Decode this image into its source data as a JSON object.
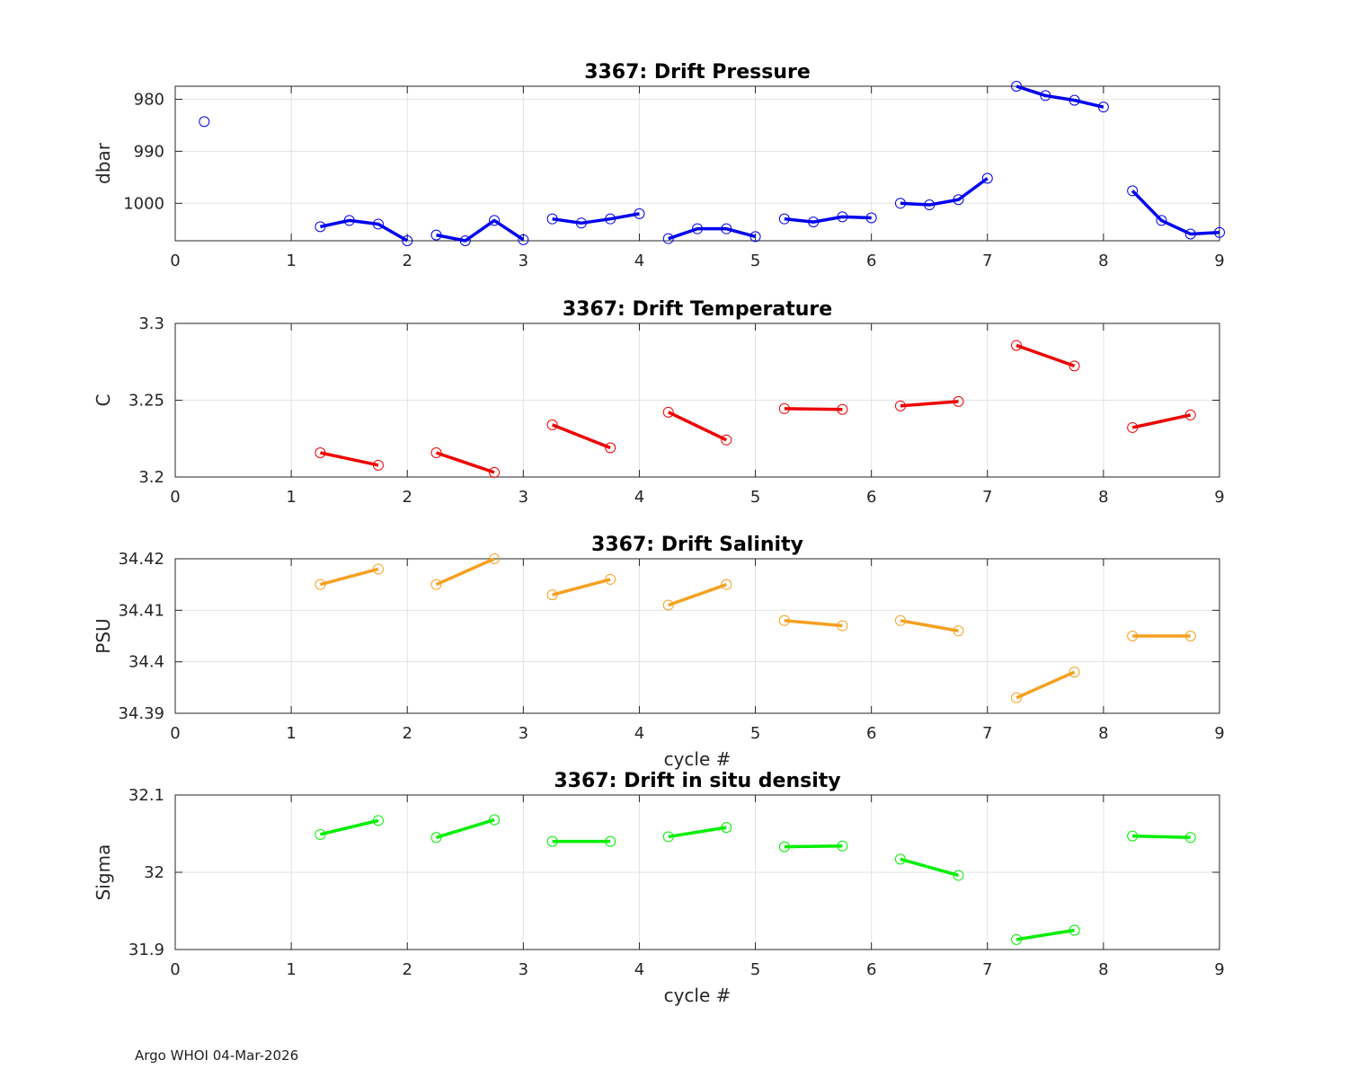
{
  "footer": "Argo WHOI 04-Mar-2026",
  "chart_data": [
    {
      "type": "line",
      "title": "3367: Drift Pressure",
      "xlabel": "",
      "ylabel": "dbar",
      "xlim": [
        0,
        9
      ],
      "ylim": [
        1007.2,
        977.5
      ],
      "y_reversed": true,
      "xticks": [
        "0",
        "1",
        "2",
        "3",
        "4",
        "5",
        "6",
        "7",
        "8",
        "9"
      ],
      "yticks": [
        {
          "v": 980,
          "label": "980"
        },
        {
          "v": 990,
          "label": "990"
        },
        {
          "v": 1000,
          "label": "1000"
        }
      ],
      "grid": true,
      "color": "#0000ee",
      "segments": [
        [
          [
            0.25,
            984.3
          ]
        ],
        [
          [
            1.25,
            1004.5
          ],
          [
            1.5,
            1003.3
          ],
          [
            1.75,
            1004.0
          ],
          [
            2.0,
            1007.2
          ]
        ],
        [
          [
            2.25,
            1006.1
          ],
          [
            2.5,
            1007.2
          ],
          [
            2.75,
            1003.3
          ],
          [
            3.0,
            1007.0
          ]
        ],
        [
          [
            3.25,
            1003.0
          ],
          [
            3.5,
            1003.8
          ],
          [
            3.75,
            1003.0
          ],
          [
            4.0,
            1002.0
          ]
        ],
        [
          [
            4.25,
            1006.8
          ],
          [
            4.5,
            1004.9
          ],
          [
            4.75,
            1004.9
          ],
          [
            5.0,
            1006.4
          ]
        ],
        [
          [
            5.25,
            1003.0
          ],
          [
            5.5,
            1003.6
          ],
          [
            5.75,
            1002.6
          ],
          [
            6.0,
            1002.8
          ]
        ],
        [
          [
            6.25,
            1000.0
          ],
          [
            6.5,
            1000.3
          ],
          [
            6.75,
            999.3
          ],
          [
            7.0,
            995.2
          ]
        ],
        [
          [
            7.25,
            977.5
          ],
          [
            7.5,
            979.3
          ],
          [
            7.75,
            980.2
          ],
          [
            8.0,
            981.5
          ]
        ],
        [
          [
            8.25,
            997.6
          ],
          [
            8.5,
            1003.3
          ],
          [
            8.75,
            1005.9
          ],
          [
            9.0,
            1005.6
          ]
        ]
      ]
    },
    {
      "type": "line",
      "title": "3367: Drift Temperature",
      "xlabel": "",
      "ylabel": "C",
      "xlim": [
        0,
        9
      ],
      "ylim": [
        3.2,
        3.3
      ],
      "y_reversed": false,
      "xticks": [
        "0",
        "1",
        "2",
        "3",
        "4",
        "5",
        "6",
        "7",
        "8",
        "9"
      ],
      "yticks": [
        {
          "v": 3.2,
          "label": "3.2"
        },
        {
          "v": 3.25,
          "label": "3.25"
        },
        {
          "v": 3.3,
          "label": "3.3"
        }
      ],
      "grid": true,
      "color": "#ee0000",
      "segments": [
        [
          [
            1.25,
            3.2158
          ],
          [
            1.75,
            3.2077
          ]
        ],
        [
          [
            2.25,
            3.2158
          ],
          [
            2.75,
            3.203
          ]
        ],
        [
          [
            3.25,
            3.234
          ],
          [
            3.75,
            3.219
          ]
        ],
        [
          [
            4.25,
            3.2422
          ],
          [
            4.75,
            3.2241
          ]
        ],
        [
          [
            5.25,
            3.2445
          ],
          [
            5.75,
            3.244
          ]
        ],
        [
          [
            6.25,
            3.2463
          ],
          [
            6.75,
            3.2492
          ]
        ],
        [
          [
            7.25,
            3.2857
          ],
          [
            7.75,
            3.2723
          ]
        ],
        [
          [
            8.25,
            3.2322
          ],
          [
            8.75,
            3.2404
          ]
        ]
      ]
    },
    {
      "type": "line",
      "title": "3367: Drift Salinity",
      "xlabel": "cycle #",
      "ylabel": "PSU",
      "xlim": [
        0,
        9
      ],
      "ylim": [
        34.39,
        34.42
      ],
      "y_reversed": false,
      "xticks": [
        "0",
        "1",
        "2",
        "3",
        "4",
        "5",
        "6",
        "7",
        "8",
        "9"
      ],
      "yticks": [
        {
          "v": 34.39,
          "label": "34.39"
        },
        {
          "v": 34.4,
          "label": "34.4"
        },
        {
          "v": 34.41,
          "label": "34.41"
        },
        {
          "v": 34.42,
          "label": "34.42"
        }
      ],
      "grid": true,
      "color": "#f5a020",
      "segments": [
        [
          [
            1.25,
            34.415
          ],
          [
            1.75,
            34.418
          ]
        ],
        [
          [
            2.25,
            34.415
          ],
          [
            2.75,
            34.42
          ]
        ],
        [
          [
            3.25,
            34.413
          ],
          [
            3.75,
            34.416
          ]
        ],
        [
          [
            4.25,
            34.411
          ],
          [
            4.75,
            34.415
          ]
        ],
        [
          [
            5.25,
            34.408
          ],
          [
            5.75,
            34.407
          ]
        ],
        [
          [
            6.25,
            34.408
          ],
          [
            6.75,
            34.406
          ]
        ],
        [
          [
            7.25,
            34.393
          ],
          [
            7.75,
            34.398
          ]
        ],
        [
          [
            8.25,
            34.405
          ],
          [
            8.75,
            34.405
          ]
        ]
      ]
    },
    {
      "type": "line",
      "title": "3367: Drift in situ density",
      "xlabel": "cycle #",
      "ylabel": "Sigma",
      "xlim": [
        0,
        9
      ],
      "ylim": [
        31.9,
        32.1
      ],
      "y_reversed": false,
      "xticks": [
        "0",
        "1",
        "2",
        "3",
        "4",
        "5",
        "6",
        "7",
        "8",
        "9"
      ],
      "yticks": [
        {
          "v": 31.9,
          "label": "31.9"
        },
        {
          "v": 32.0,
          "label": "32"
        },
        {
          "v": 32.1,
          "label": "32.1"
        }
      ],
      "grid": true,
      "color": "#00ee00",
      "segments": [
        [
          [
            1.25,
            32.049
          ],
          [
            1.75,
            32.067
          ]
        ],
        [
          [
            2.25,
            32.045
          ],
          [
            2.75,
            32.068
          ]
        ],
        [
          [
            3.25,
            32.04
          ],
          [
            3.75,
            32.04
          ]
        ],
        [
          [
            4.25,
            32.046
          ],
          [
            4.75,
            32.058
          ]
        ],
        [
          [
            5.25,
            32.033
          ],
          [
            5.75,
            32.034
          ]
        ],
        [
          [
            6.25,
            32.017
          ],
          [
            6.75,
            31.996
          ]
        ],
        [
          [
            7.25,
            31.913
          ],
          [
            7.75,
            31.925
          ]
        ],
        [
          [
            8.25,
            32.047
          ],
          [
            8.75,
            32.045
          ]
        ]
      ]
    }
  ]
}
